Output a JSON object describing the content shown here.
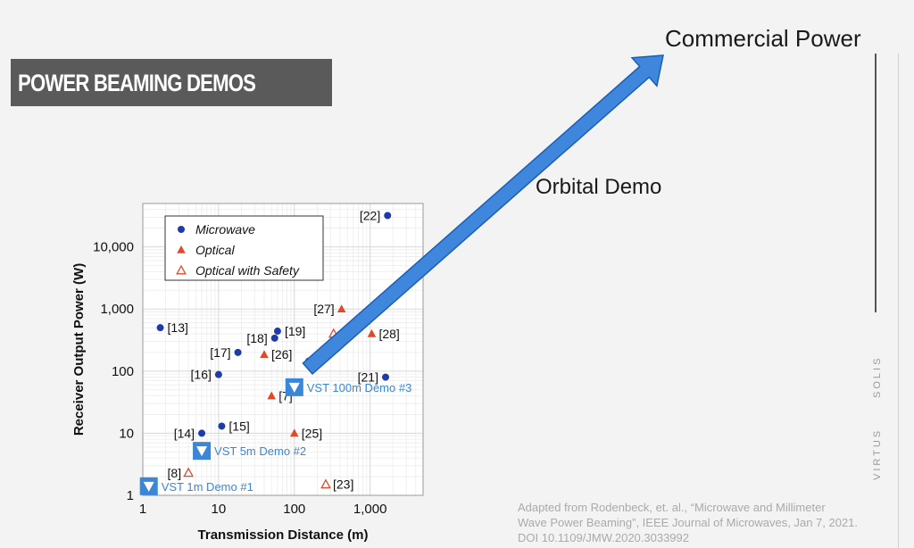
{
  "slide": {
    "banner_title": "POWER BEAMING DEMOS",
    "top_annotation": "Commercial Power",
    "mid_annotation": "Orbital Demo",
    "citation": [
      "Adapted from Rodenbeck, et. al., “Microwave and Millimeter",
      "Wave Power Beaming”,  IEEE Journal of Microwaves, Jan 7, 2021.",
      "DOI 10.1109/JMW.2020.3033992"
    ],
    "side_text_1": "SOLIS",
    "side_text_2": "VIRTUS",
    "colors": {
      "banner": "#5a5a5a",
      "arrow": "#3f87dc",
      "arrow_stroke": "#1a5fb4",
      "microwave": "#1f3ba8",
      "optical": "#e04a2a"
    }
  },
  "chart_data": {
    "type": "scatter",
    "xlabel": "Transmission Distance (m)",
    "ylabel": "Receiver Output Power (W)",
    "x_scale": "log",
    "y_scale": "log",
    "xlim": [
      1,
      5000
    ],
    "ylim": [
      1,
      50000
    ],
    "x_ticks": [
      {
        "value": 1,
        "label": "1"
      },
      {
        "value": 10,
        "label": "10"
      },
      {
        "value": 100,
        "label": "100"
      },
      {
        "value": 1000,
        "label": "1,000"
      }
    ],
    "y_ticks": [
      {
        "value": 1,
        "label": "1"
      },
      {
        "value": 10,
        "label": "10"
      },
      {
        "value": 100,
        "label": "100"
      },
      {
        "value": 1000,
        "label": "1,000"
      },
      {
        "value": 10000,
        "label": "10,000"
      }
    ],
    "legend": [
      {
        "name": "Microwave",
        "marker": "circle"
      },
      {
        "name": "Optical",
        "marker": "triangle"
      },
      {
        "name": "Optical with Safety",
        "marker": "triangle-open"
      }
    ],
    "legend_position": "top-left",
    "series": [
      {
        "name": "Microwave",
        "marker": "circle",
        "points": [
          {
            "x": 1.7,
            "y": 500,
            "label": "[13]"
          },
          {
            "x": 6,
            "y": 10,
            "label": "[14]"
          },
          {
            "x": 11,
            "y": 13,
            "label": "[15]"
          },
          {
            "x": 10,
            "y": 88,
            "label": "[16]"
          },
          {
            "x": 18,
            "y": 200,
            "label": "[17]"
          },
          {
            "x": 55,
            "y": 340,
            "label": "[18]"
          },
          {
            "x": 60,
            "y": 440,
            "label": "[19]"
          },
          {
            "x": 155,
            "y": 145,
            "label": ""
          },
          {
            "x": 1600,
            "y": 80,
            "label": "[21]"
          },
          {
            "x": 1700,
            "y": 32000,
            "label": "[22]"
          }
        ]
      },
      {
        "name": "Optical",
        "marker": "triangle",
        "points": [
          {
            "x": 40,
            "y": 185,
            "label": "[26]"
          },
          {
            "x": 50,
            "y": 40,
            "label": "[7]"
          },
          {
            "x": 100,
            "y": 10,
            "label": "[25]"
          },
          {
            "x": 420,
            "y": 1000,
            "label": "[27]"
          },
          {
            "x": 1050,
            "y": 400,
            "label": "[28]"
          }
        ]
      },
      {
        "name": "Optical with Safety",
        "marker": "triangle-open",
        "points": [
          {
            "x": 4,
            "y": 2.3,
            "label": "[8]"
          },
          {
            "x": 260,
            "y": 1.5,
            "label": "[23]"
          },
          {
            "x": 330,
            "y": 400,
            "label": ""
          }
        ]
      }
    ],
    "demos": [
      {
        "x": 1.2,
        "y": 1.4,
        "label": "VST 1m Demo #1"
      },
      {
        "x": 6,
        "y": 5.2,
        "label": "VST 5m Demo #2"
      },
      {
        "x": 100,
        "y": 55,
        "label": "VST 100m Demo #3"
      }
    ],
    "arrow": {
      "from": {
        "x": 150,
        "y": 110
      }
    }
  }
}
